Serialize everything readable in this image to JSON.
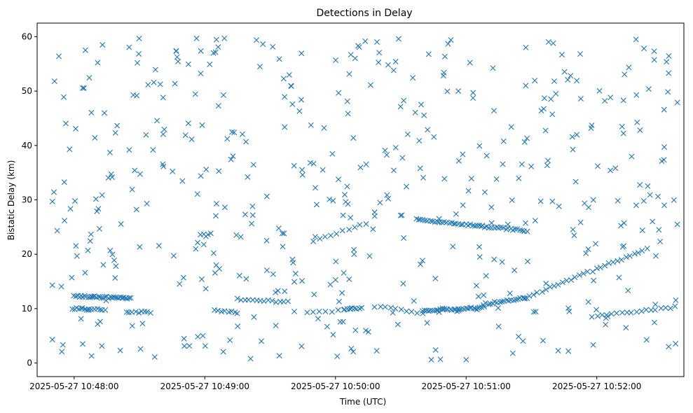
{
  "chart_data": {
    "type": "scatter",
    "title": "Detections in Delay",
    "xlabel": "Time (UTC)",
    "ylabel": "Bistatic Delay (km)",
    "marker": "x",
    "color": "#1f77b4",
    "grid": false,
    "xlim": [
      "2025-05-27 10:47:43",
      "2025-05-27 10:52:40"
    ],
    "ylim": [
      -2.5,
      62.5
    ],
    "xticks": [
      "2025-05-27 10:48:00",
      "2025-05-27 10:49:00",
      "2025-05-27 10:50:00",
      "2025-05-27 10:51:00",
      "2025-05-27 10:52:00"
    ],
    "yticks": [
      0,
      10,
      20,
      30,
      40,
      50,
      60
    ],
    "tracks": [
      {
        "t0": "2025-05-27 10:48:00",
        "t1": "2025-05-27 10:48:26",
        "y0": 12.3,
        "y1": 11.9,
        "n": 34
      },
      {
        "t0": "2025-05-27 10:47:59",
        "t1": "2025-05-27 10:48:14",
        "y0": 10.0,
        "y1": 9.8,
        "n": 14
      },
      {
        "t0": "2025-05-27 10:48:24",
        "t1": "2025-05-27 10:48:35",
        "y0": 9.4,
        "y1": 9.3,
        "n": 9
      },
      {
        "t0": "2025-05-27 10:49:06",
        "t1": "2025-05-27 10:49:14",
        "y0": 9.5,
        "y1": 9.4,
        "n": 6
      },
      {
        "t0": "2025-05-27 10:49:47",
        "t1": "2025-05-27 10:50:07",
        "y0": 9.2,
        "y1": 9.8,
        "n": 8
      },
      {
        "t0": "2025-05-27 10:50:04",
        "t1": "2025-05-27 10:50:12",
        "y0": 10.0,
        "y1": 10.1,
        "n": 8
      },
      {
        "t0": "2025-05-27 10:50:18",
        "t1": "2025-05-27 10:50:40",
        "y0": 10.4,
        "y1": 9.2,
        "n": 10
      },
      {
        "t0": "2025-05-27 10:50:40",
        "t1": "2025-05-27 10:51:08",
        "y0": 9.6,
        "y1": 10.2,
        "n": 32
      },
      {
        "t0": "2025-05-27 10:51:08",
        "t1": "2025-05-27 10:51:28",
        "y0": 10.8,
        "y1": 12.0,
        "n": 20
      },
      {
        "t0": "2025-05-27 10:49:15",
        "t1": "2025-05-27 10:49:38",
        "y0": 11.7,
        "y1": 11.2,
        "n": 14
      },
      {
        "t0": "2025-05-27 10:50:37",
        "t1": "2025-05-27 10:51:28",
        "y0": 26.4,
        "y1": 24.3,
        "n": 48
      },
      {
        "t0": "2025-05-27 10:49:50",
        "t1": "2025-05-27 10:50:14",
        "y0": 22.4,
        "y1": 25.7,
        "n": 10
      },
      {
        "t0": "2025-05-27 10:51:27",
        "t1": "2025-05-27 10:52:23",
        "y0": 12.0,
        "y1": 21.0,
        "n": 30
      },
      {
        "t0": "2025-05-27 10:51:58",
        "t1": "2025-05-27 10:52:36",
        "y0": 8.6,
        "y1": 10.3,
        "n": 18
      },
      {
        "t0": "2025-05-27 10:48:58",
        "t1": "2025-05-27 10:49:03",
        "y0": 23.7,
        "y1": 23.7,
        "n": 4
      }
    ],
    "scatter_fill": {
      "count": 460,
      "seed": 20250527,
      "xrange": [
        "2025-05-27 10:47:50",
        "2025-05-27 10:52:37"
      ],
      "yrange": [
        0.5,
        59.9
      ]
    },
    "highlight_points": [
      {
        "t": "2025-05-27 10:47:50",
        "y": 4.3
      },
      {
        "t": "2025-05-27 10:47:50",
        "y": 14.3
      },
      {
        "t": "2025-05-27 10:47:50",
        "y": 29.7
      },
      {
        "t": "2025-05-27 10:47:51",
        "y": 51.8
      },
      {
        "t": "2025-05-27 10:47:53",
        "y": 56.4
      },
      {
        "t": "2025-05-27 10:48:13",
        "y": 58.5
      },
      {
        "t": "2025-05-27 10:49:09",
        "y": 59.7
      },
      {
        "t": "2025-05-27 10:50:29",
        "y": 59.6
      },
      {
        "t": "2025-05-27 10:51:00",
        "y": 0.6
      },
      {
        "t": "2025-05-27 10:50:44",
        "y": 0.6
      },
      {
        "t": "2025-05-27 10:49:21",
        "y": 0.8
      },
      {
        "t": "2025-05-27 10:52:37",
        "y": 47.9
      },
      {
        "t": "2025-05-27 10:52:37",
        "y": 25.5
      },
      {
        "t": "2025-05-27 10:52:33",
        "y": 3.0
      },
      {
        "t": "2025-05-27 10:52:31",
        "y": 29.0
      },
      {
        "t": "2025-05-27 10:52:33",
        "y": 53.3
      },
      {
        "t": "2025-05-27 10:52:18",
        "y": 59.5
      },
      {
        "t": "2025-05-27 10:50:53",
        "y": 59.4
      },
      {
        "t": "2025-05-27 10:51:40",
        "y": 58.8
      },
      {
        "t": "2025-05-27 10:48:08",
        "y": 1.3
      },
      {
        "t": "2025-05-27 10:48:37",
        "y": 1.1
      }
    ]
  }
}
